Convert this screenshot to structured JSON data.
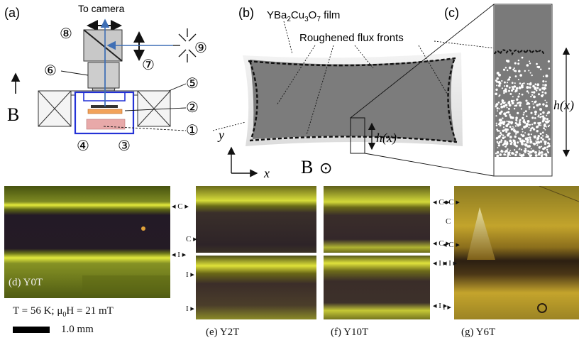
{
  "panel_a": {
    "label": "(a)",
    "camera_text": "To camera",
    "b_label": "B",
    "callouts": [
      "⑧",
      "⑥",
      "⑦",
      "⑨",
      "⑤",
      "②",
      "①",
      "④",
      "③"
    ]
  },
  "panel_b": {
    "label": "(b)",
    "film_label": "YBa₂Cu₃O₇ film",
    "fronts_label": "Roughened flux fronts",
    "h_label": "h(x)",
    "y_axis": "y",
    "x_axis": "x",
    "b_field": "B",
    "b_symbol": "⊙"
  },
  "panel_c": {
    "label": "(c)",
    "h_label": "h(x)"
  },
  "photos": {
    "d": {
      "tag": "(d) Y0T"
    },
    "e": {
      "caption": "(e) Y2T"
    },
    "f": {
      "caption": "(f) Y10T"
    },
    "g": {
      "caption": "(g) Y6T"
    },
    "condition": "T = 56 K;  μ₀H = 21 mT",
    "scale": "1.0 mm",
    "markers": {
      "d1": "◂ C ▸",
      "d2": "◂ I ▸",
      "e1": "C ▸",
      "e2": "I ▸",
      "e3": "I ▸",
      "f1": "◂ C ▸",
      "f2": "◂ C ▸",
      "f3": "◂ I ▸",
      "f4": "◂ I ▸",
      "g1": "C",
      "g2": "I ▸"
    }
  }
}
